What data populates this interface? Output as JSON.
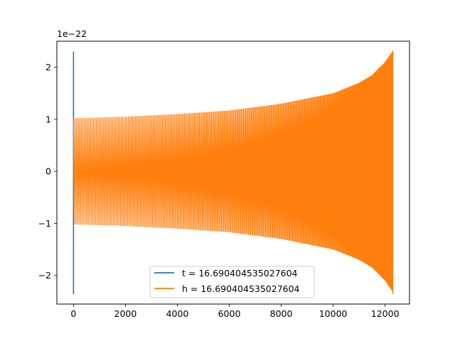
{
  "chart_data": {
    "type": "line",
    "title": "",
    "xlabel": "",
    "ylabel": "",
    "y_offset_label": "1e−22",
    "xlim": [
      -640,
      12940
    ],
    "ylim": [
      -2.55,
      2.5
    ],
    "grid": false,
    "legend_position": "lower center",
    "x_ticks": [
      0,
      2000,
      4000,
      6000,
      8000,
      10000,
      12000
    ],
    "x_tick_labels": [
      "0",
      "2000",
      "4000",
      "6000",
      "8000",
      "10000",
      "12000"
    ],
    "y_ticks": [
      -2,
      -1,
      0,
      1,
      2
    ],
    "y_tick_labels": [
      "−2",
      "−1",
      "0",
      "1",
      "2"
    ],
    "series": [
      {
        "name": "t = 16.690404535027604",
        "color": "#1f77b4",
        "description": "nearly vertical spike at x ≈ 0 spanning the full range",
        "x": [
          0,
          0,
          0
        ],
        "y": [
          2.3,
          -2.36,
          0
        ]
      },
      {
        "name": "h = 16.690404535027604",
        "color": "#ff7f0e",
        "description": "oscillating chirp signal whose envelope grows with x",
        "x_range": [
          0,
          12300
        ],
        "envelope": {
          "x": [
            0,
            2000,
            4000,
            6000,
            8000,
            10000,
            11000,
            11500,
            12000,
            12300
          ],
          "amplitude": [
            1.02,
            1.05,
            1.1,
            1.17,
            1.3,
            1.5,
            1.7,
            1.85,
            2.1,
            2.32
          ]
        },
        "lower_tip": -2.36
      }
    ],
    "legend": [
      {
        "label": "t = 16.690404535027604",
        "color": "#1f77b4"
      },
      {
        "label": "h = 16.690404535027604",
        "color": "#ff7f0e"
      }
    ]
  }
}
